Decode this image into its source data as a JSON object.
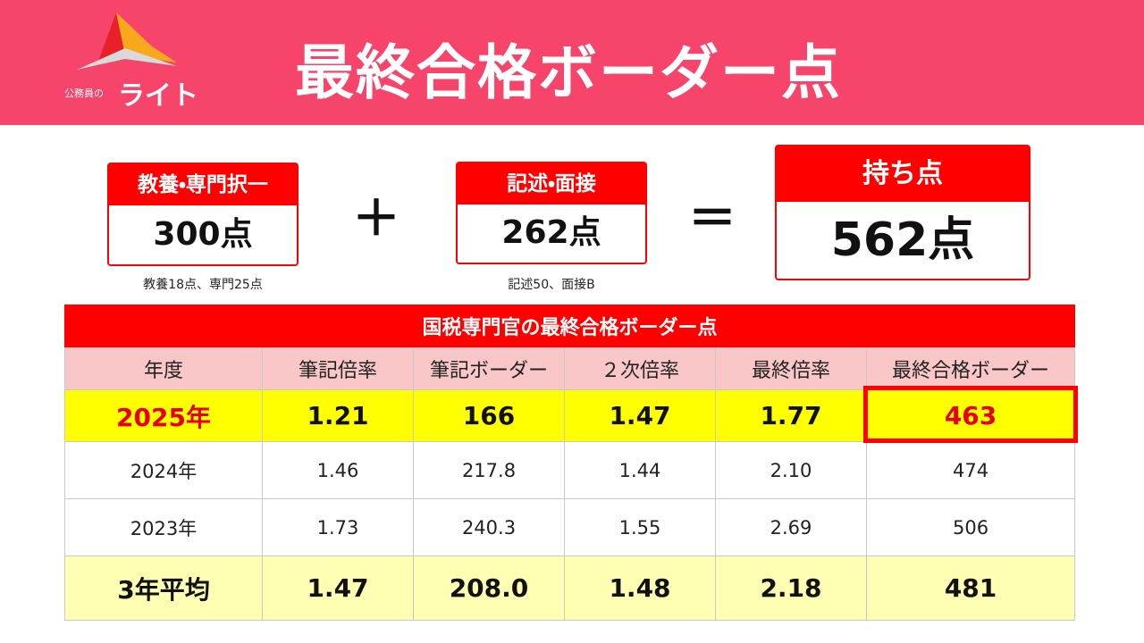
{
  "header": {
    "logo_small": "公務員の",
    "logo_main": "ライト",
    "title": "最終合格ボーダー点"
  },
  "boxes": [
    {
      "label": "教養・専門択一",
      "value": "300点",
      "note": "教養18点、専門25点"
    },
    {
      "label": "記述・面接",
      "value": "262点",
      "note": "記述50、面接B"
    },
    {
      "label": "持ち点",
      "value": "562点"
    }
  ],
  "operators": {
    "plus": "＋",
    "equals": "＝"
  },
  "table": {
    "title": "国税専門官の最終合格ボーダー点",
    "headers": [
      "年度",
      "筆記倍率",
      "筆記ボーダー",
      "２次倍率",
      "最終倍率",
      "最終合格ボーダー"
    ],
    "rows": [
      [
        "2025年",
        "1.21",
        "166",
        "1.47",
        "1.77",
        "463"
      ],
      [
        "2024年",
        "1.46",
        "217.8",
        "1.44",
        "2.10",
        "474"
      ],
      [
        "2023年",
        "1.73",
        "240.3",
        "1.55",
        "2.69",
        "506"
      ],
      [
        "3年平均",
        "1.47",
        "208.0",
        "1.48",
        "2.18",
        "481"
      ]
    ]
  }
}
